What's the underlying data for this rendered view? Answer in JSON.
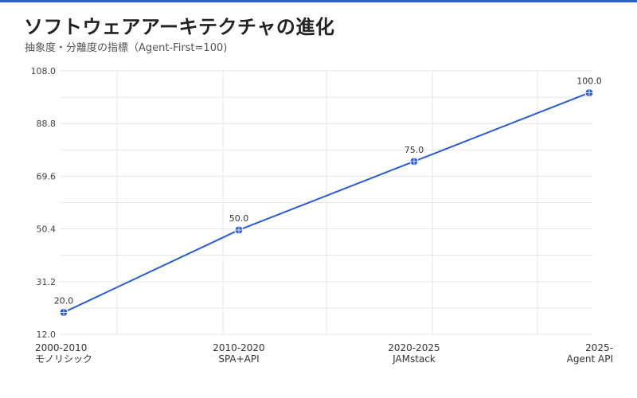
{
  "header": {
    "title": "ソフトウェアアーキテクチャの進化",
    "subtitle": "抽象度・分離度の指標（Agent-First=100)"
  },
  "colors": {
    "accent": "#2a5bd7",
    "line": "#2a5bd7",
    "grid": "#e6e6e6"
  },
  "chart_data": {
    "type": "line",
    "title": "ソフトウェアアーキテクチャの進化",
    "subtitle": "抽象度・分離度の指標（Agent-First=100)",
    "categories": [
      [
        "2000-2010",
        "モノリシック"
      ],
      [
        "2010-2020",
        "SPA+API"
      ],
      [
        "2020-2025",
        "JAMstack"
      ],
      [
        "2025-",
        "Agent API"
      ]
    ],
    "values": [
      20.0,
      50.0,
      75.0,
      100.0
    ],
    "value_labels": [
      "20.0",
      "50.0",
      "75.0",
      "100.0"
    ],
    "ylim": [
      12.0,
      108.0
    ],
    "yticks": [
      12.0,
      31.2,
      50.4,
      69.6,
      88.8,
      108.0
    ],
    "ytick_labels": [
      "12.0",
      "31.2",
      "50.4",
      "69.6",
      "88.8",
      "108.0"
    ],
    "grid": true,
    "legend": "none",
    "xlabel": "",
    "ylabel": ""
  }
}
